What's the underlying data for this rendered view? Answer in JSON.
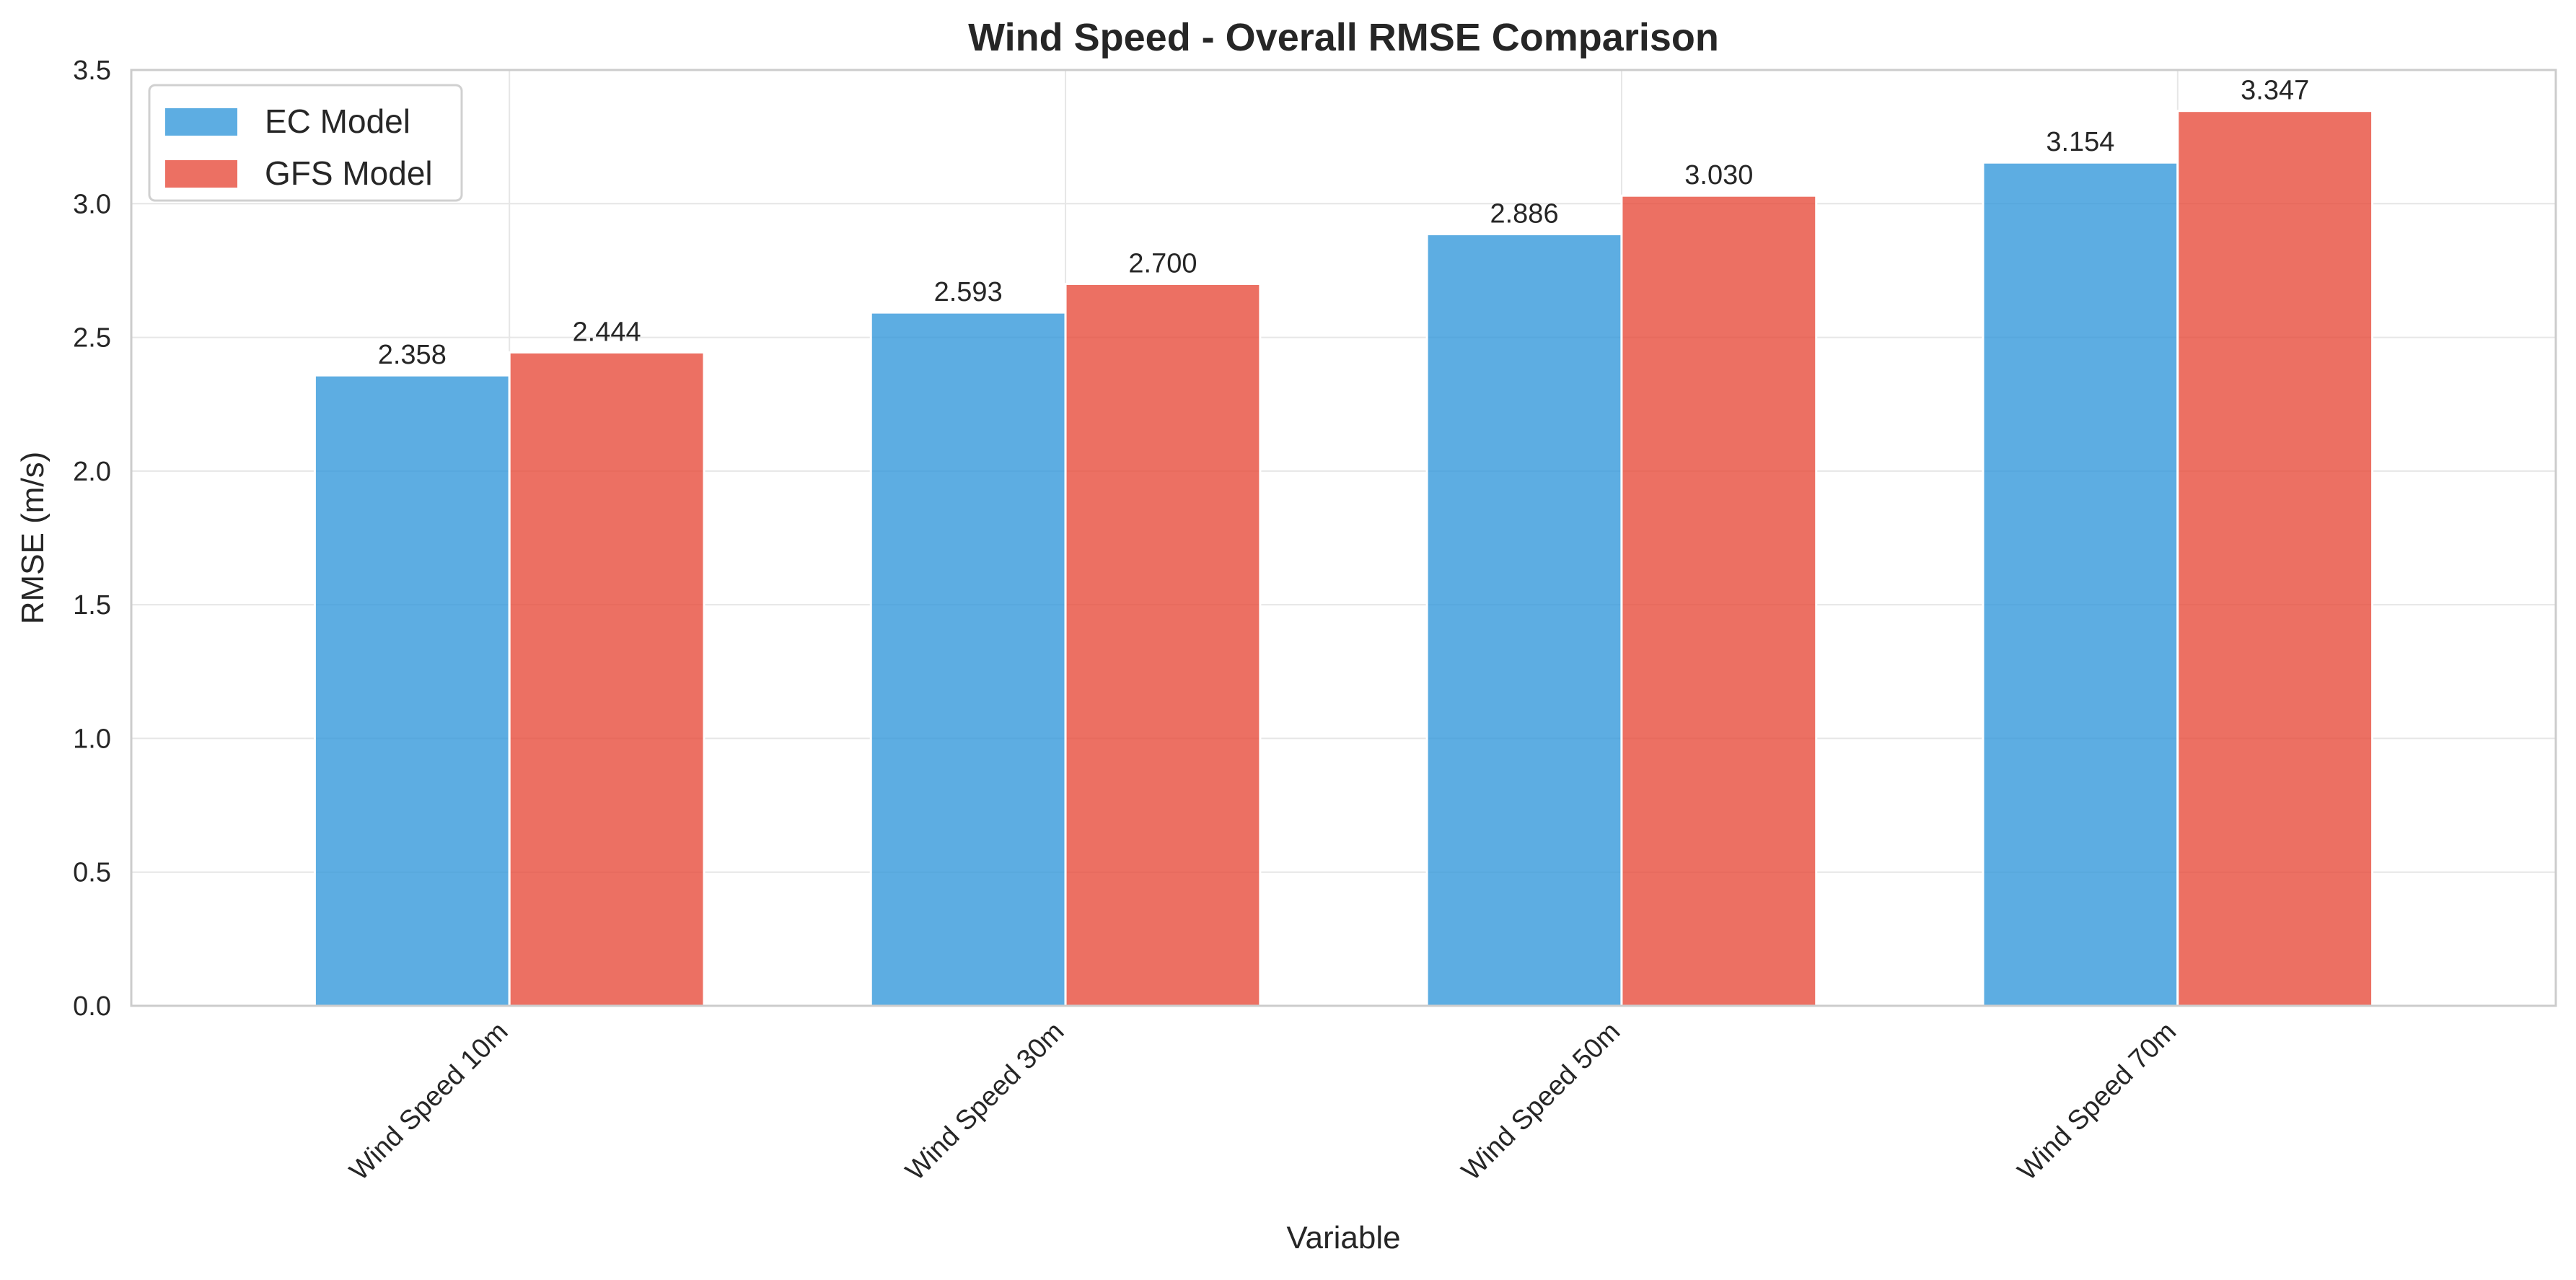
{
  "chart_data": {
    "type": "bar",
    "title": "Wind Speed - Overall RMSE Comparison",
    "xlabel": "Variable",
    "ylabel": "RMSE (m/s)",
    "categories": [
      "Wind Speed 10m",
      "Wind Speed 30m",
      "Wind Speed 50m",
      "Wind Speed 70m"
    ],
    "series": [
      {
        "name": "EC Model",
        "values": [
          2.358,
          2.593,
          2.886,
          3.154
        ],
        "labels": [
          "2.358",
          "2.593",
          "2.886",
          "3.154"
        ],
        "color": "#3498db"
      },
      {
        "name": "GFS Model",
        "values": [
          2.444,
          2.7,
          3.03,
          3.347
        ],
        "labels": [
          "2.444",
          "2.700",
          "3.030",
          "3.347"
        ],
        "color": "#e74c3c"
      }
    ],
    "ylim": [
      0,
      3.5
    ],
    "yticks": [
      "0.0",
      "0.5",
      "1.0",
      "1.5",
      "2.0",
      "2.5",
      "3.0",
      "3.5"
    ],
    "grid": true,
    "legend_position": "top-left"
  }
}
